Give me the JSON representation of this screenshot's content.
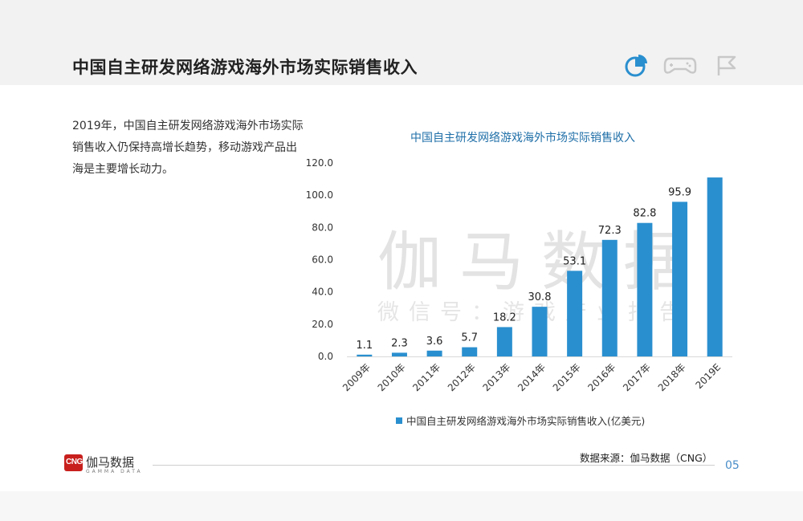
{
  "page": {
    "title": "中国自主研发网络游戏海外市场实际销售收入",
    "intro": "2019年，中国自主研发网络游戏海外市场实际销售收入仍保持高增长趋势，移动游戏产品出海是主要增长动力。",
    "watermark_main": "伽马数据",
    "watermark_sub": "微信号：游戏产业报告",
    "footer_logo_name": "伽马数据",
    "footer_logo_badge": "CNG",
    "footer_logo_sub": "GAMMA DATA",
    "source": "数据来源：伽马数据（CNG）",
    "page_number": "05",
    "header_icons": [
      "pie-chart-icon",
      "gamepad-icon",
      "flag-icon"
    ]
  },
  "colors": {
    "bar": "#2a8fcf",
    "chart_title": "#1f6fa8",
    "page_number": "#4a8ec9",
    "icon_active": "#2a8fcf",
    "icon_inactive": "#c8c8c8",
    "logo": "#c8201d"
  },
  "chart_data": {
    "type": "bar",
    "title": "中国自主研发网络游戏海外市场实际销售收入",
    "categories": [
      "2009年",
      "2010年",
      "2011年",
      "2012年",
      "2013年",
      "2014年",
      "2015年",
      "2016年",
      "2017年",
      "2018年",
      "2019E"
    ],
    "series": [
      {
        "name": "中国自主研发网络游戏海外市场实际销售收入(亿美元)",
        "values": [
          1.1,
          2.3,
          3.6,
          5.7,
          18.2,
          30.8,
          53.1,
          72.3,
          82.8,
          95.9,
          111.0
        ],
        "data_labels": [
          "1.1",
          "2.3",
          "3.6",
          "5.7",
          "18.2",
          "30.8",
          "53.1",
          "72.3",
          "82.8",
          "95.9",
          ""
        ]
      }
    ],
    "ylim": [
      0,
      120
    ],
    "yticks": [
      "0.0",
      "20.0",
      "40.0",
      "60.0",
      "80.0",
      "100.0",
      "120.0"
    ],
    "grid": false,
    "legend_position": "bottom"
  }
}
